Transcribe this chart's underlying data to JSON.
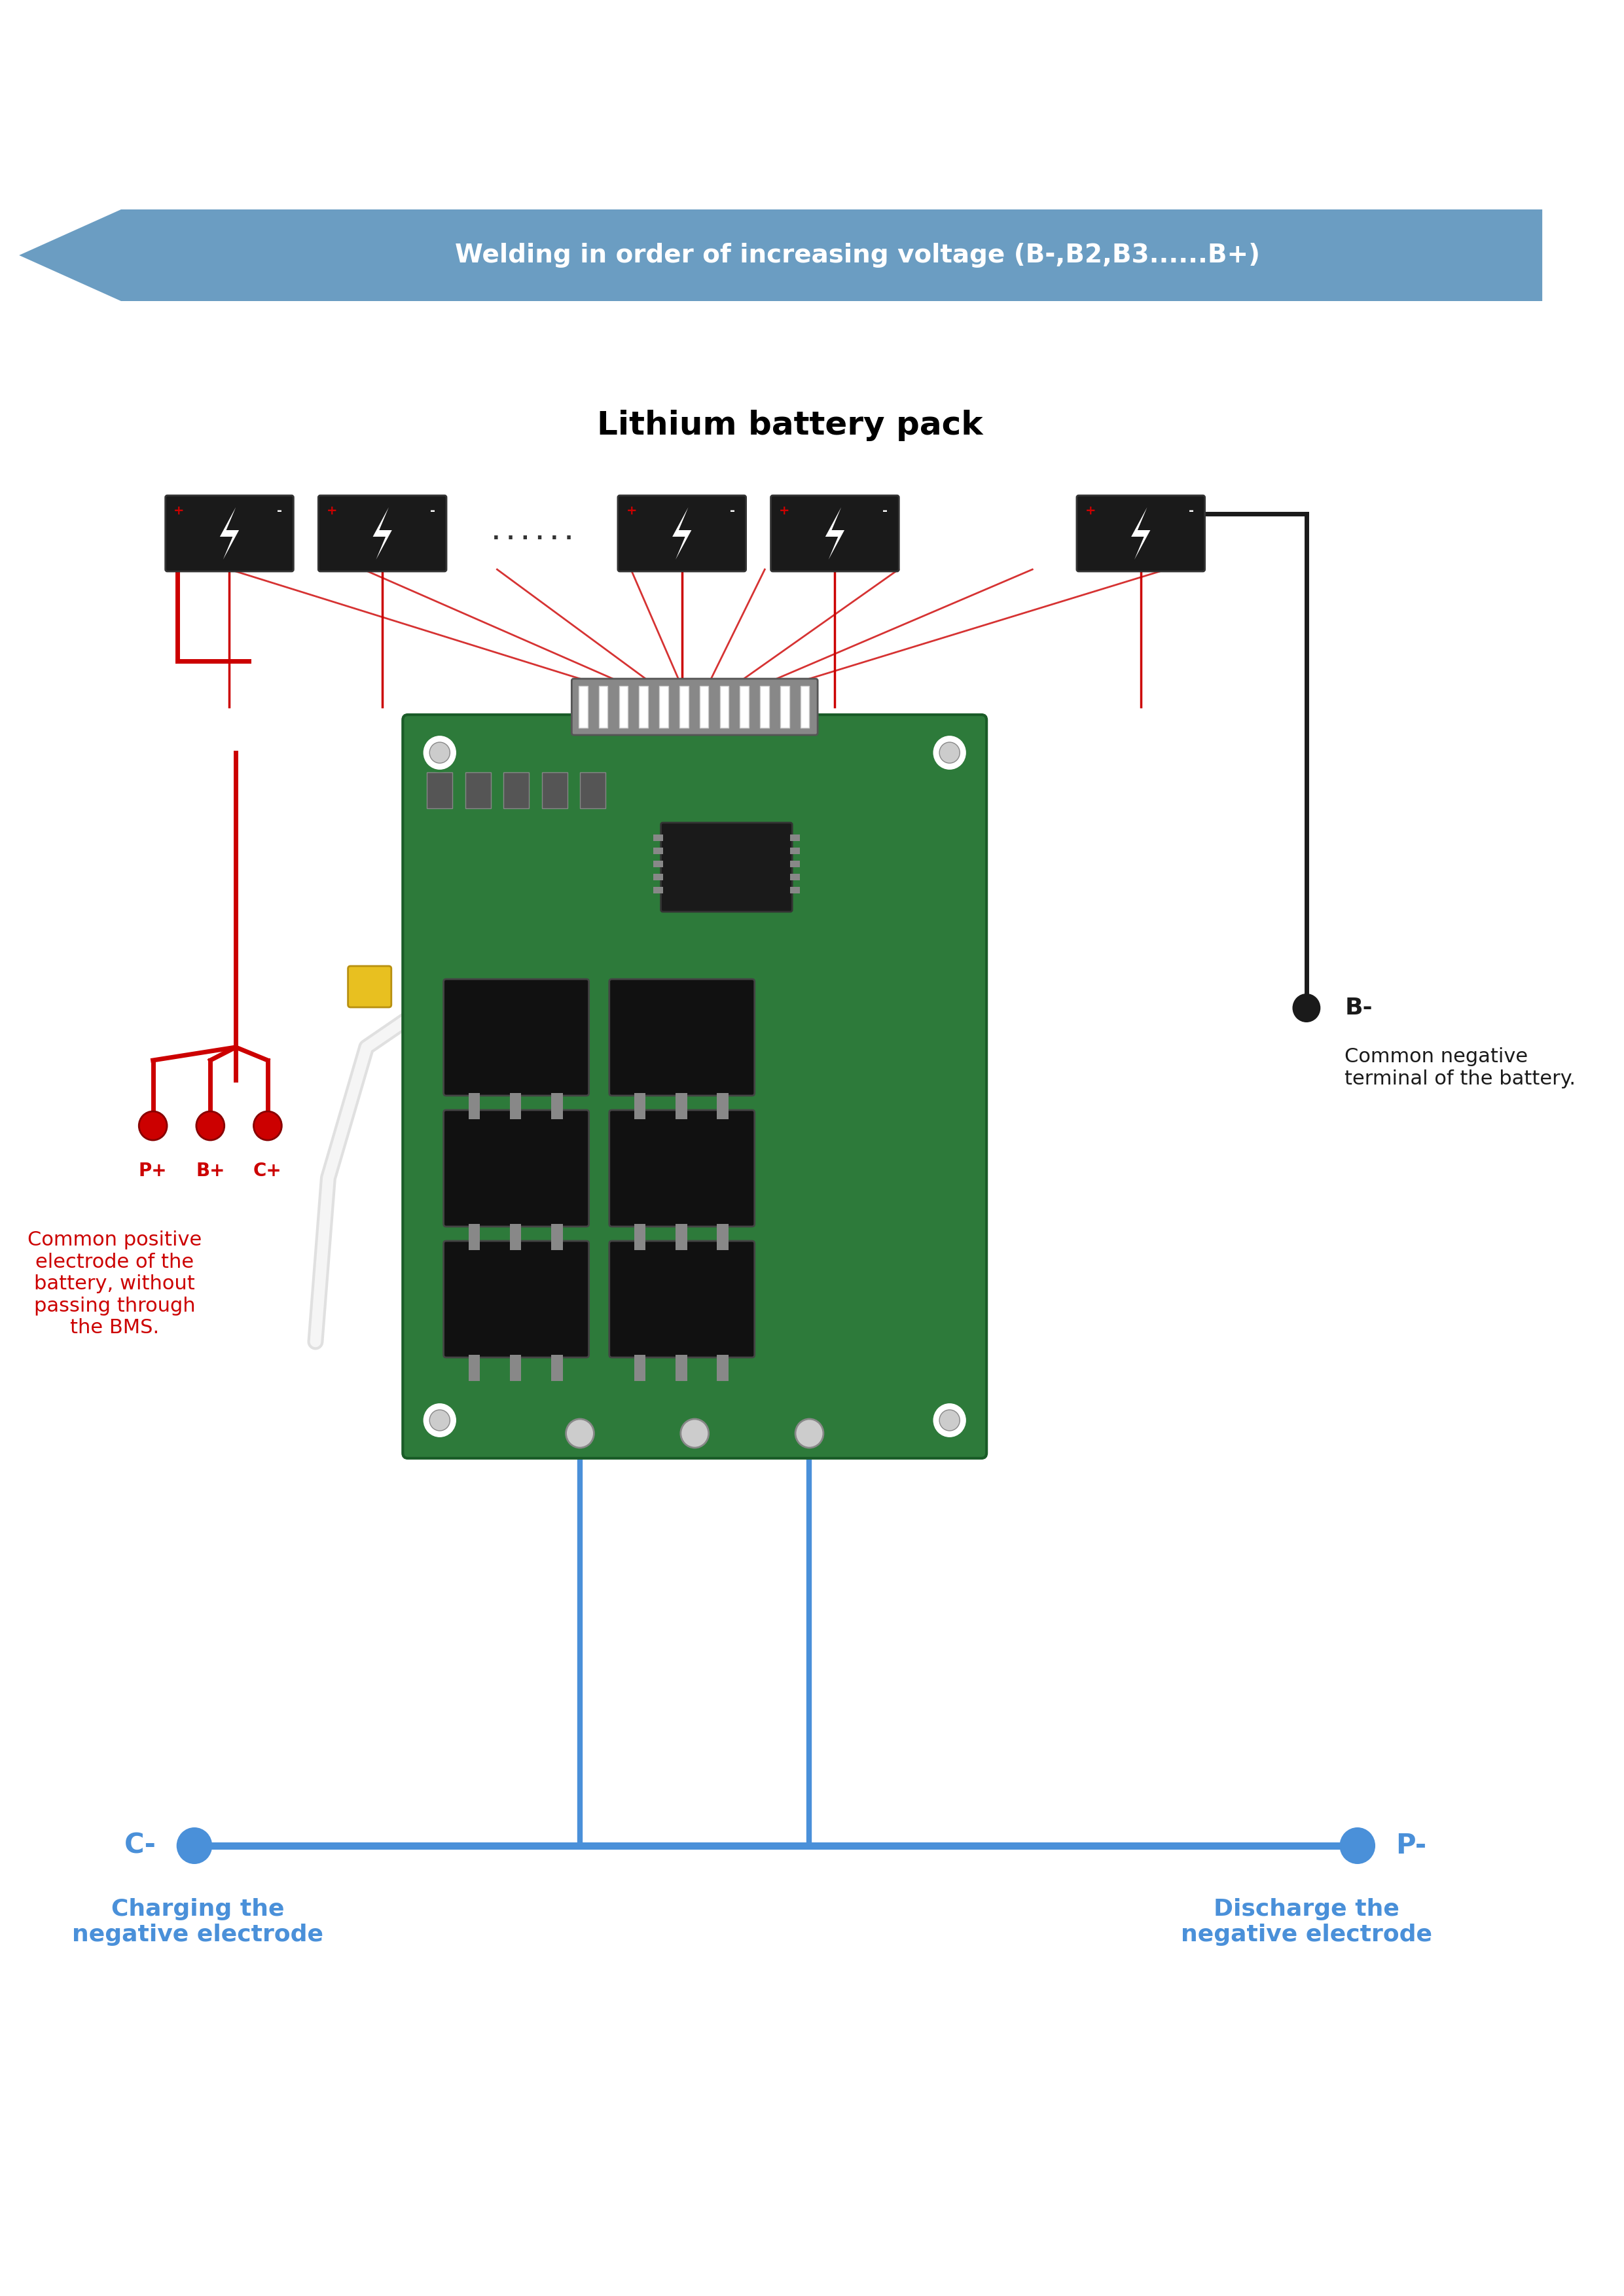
{
  "bg_color": "#ffffff",
  "arrow_color": "#6b9dc2",
  "arrow_text": "Welding in order of increasing voltage (B-,B2,B3......B+)",
  "arrow_text_color": "#ffffff",
  "title": "Lithium battery pack",
  "title_color": "#000000",
  "title_fontsize": 36,
  "arrow_fontsize": 28,
  "battery_color": "#1a1a1a",
  "battery_plus_color": "#cc0000",
  "battery_strip_color": "#f0c040",
  "wire_red_color": "#cc0000",
  "wire_black_color": "#1a1a1a",
  "wire_blue_color": "#4a90d9",
  "board_green": "#2d7a3a",
  "board_dark": "#1a3a20",
  "connector_gray": "#808080",
  "label_red_color": "#cc0000",
  "label_blue_color": "#4a90d9",
  "label_black_color": "#1a1a1a",
  "dots_text": ". . . . . .",
  "left_labels": [
    "P+",
    "B+",
    "C+"
  ],
  "left_desc": "Common positive\nelectrode of the\nbattery, without\npassing through\nthe BMS.",
  "right_label": "B-",
  "right_desc": "Common negative\nterminal of the battery.",
  "bottom_left_label": "C-",
  "bottom_right_label": "P-",
  "bottom_left_desc": "Charging the\nnegative electrode",
  "bottom_right_desc": "Discharge the\nnegative electrode"
}
